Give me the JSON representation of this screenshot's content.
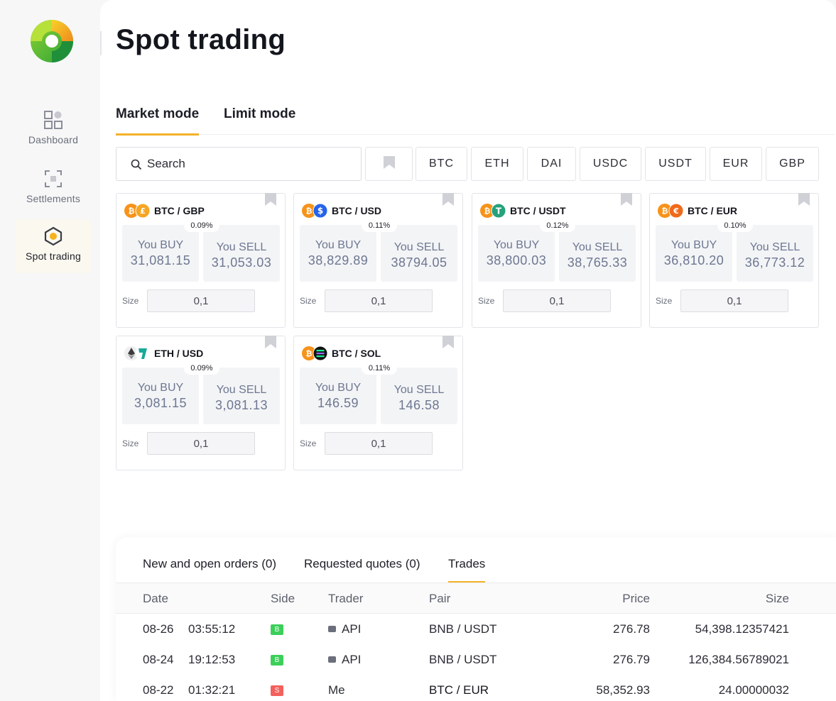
{
  "app": {
    "title": "Spot trading"
  },
  "sidebar": {
    "items": [
      {
        "label": "Dashboard",
        "icon": "dashboard-icon"
      },
      {
        "label": "Settlements",
        "icon": "settlements-icon"
      },
      {
        "label": "Spot trading",
        "icon": "spot-trading-icon",
        "active": true
      }
    ]
  },
  "tabs": [
    {
      "label": "Market mode",
      "active": true
    },
    {
      "label": "Limit mode",
      "active": false
    }
  ],
  "search": {
    "placeholder": "Search"
  },
  "filters": [
    "BTC",
    "ETH",
    "DAI",
    "USDC",
    "USDT",
    "EUR",
    "GBP"
  ],
  "cards": [
    {
      "pair": "BTC / GBP",
      "spread": "0.09%",
      "buy_label": "You BUY",
      "buy": "31,081.15",
      "sell_label": "You SELL",
      "sell": "31,053.03",
      "size_label": "Size",
      "size": "0,1"
    },
    {
      "pair": "BTC / USD",
      "spread": "0.11%",
      "buy_label": "You BUY",
      "buy": "38,829.89",
      "sell_label": "You SELL",
      "sell": "38794.05",
      "size_label": "Size",
      "size": "0,1"
    },
    {
      "pair": "BTC / USDT",
      "spread": "0.12%",
      "buy_label": "You BUY",
      "buy": "38,800.03",
      "sell_label": "You SELL",
      "sell": "38,765.33",
      "size_label": "Size",
      "size": "0,1"
    },
    {
      "pair": "BTC / EUR",
      "spread": "0.10%",
      "buy_label": "You BUY",
      "buy": "36,810.20",
      "sell_label": "You SELL",
      "sell": "36,773.12",
      "size_label": "Size",
      "size": "0,1"
    },
    {
      "pair": "ETH / USD",
      "spread": "0.09%",
      "buy_label": "You BUY",
      "buy": "3,081.15",
      "sell_label": "You SELL",
      "sell": "3,081.13",
      "size_label": "Size",
      "size": "0,1"
    },
    {
      "pair": "BTC / SOL",
      "spread": "0.11%",
      "buy_label": "You BUY",
      "buy": "146.59",
      "sell_label": "You SELL",
      "sell": "146.58",
      "size_label": "Size",
      "size": "0,1"
    }
  ],
  "orders": {
    "tabs": [
      "New and open orders (0)",
      "Requested quotes (0)",
      "Trades"
    ],
    "active_tab": "Trades",
    "columns": [
      "Date",
      "Side",
      "Trader",
      "Pair",
      "Price",
      "Size"
    ],
    "rows": [
      {
        "date": "08-26",
        "time": "03:55:12",
        "side": "B",
        "trader": "API",
        "pair": "BNB / USDT",
        "price": "276.78",
        "size": "54,398.12357421"
      },
      {
        "date": "08-24",
        "time": "19:12:53",
        "side": "B",
        "trader": "API",
        "pair": "BNB / USDT",
        "price": "276.79",
        "size": "126,384.56789021"
      },
      {
        "date": "08-22",
        "time": "01:32:21",
        "side": "S",
        "trader": "Me",
        "pair": "BTC / EUR",
        "price": "58,352.93",
        "size": "24.00000032"
      }
    ]
  },
  "colors": {
    "accent": "#f3b22a",
    "buy": "#3ccf5a",
    "sell": "#f2615c",
    "btc": "#f7931a"
  }
}
